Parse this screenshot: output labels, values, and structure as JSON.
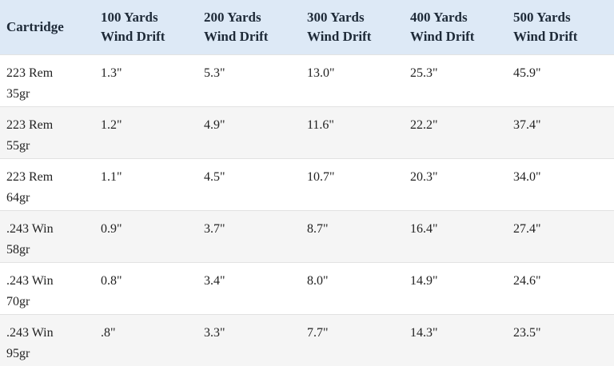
{
  "table": {
    "header": [
      "Cartridge",
      "100 Yards Wind Drift",
      "200 Yards Wind Drift",
      "300 Yards Wind Drift",
      "400 Yards Wind Drift",
      "500 Yards Wind Drift"
    ],
    "rows": [
      [
        "223 Rem 35gr",
        "1.3\"",
        "5.3\"",
        "13.0\"",
        "25.3\"",
        "45.9\""
      ],
      [
        "223 Rem 55gr",
        "1.2\"",
        "4.9\"",
        "11.6\"",
        "22.2\"",
        "37.4\""
      ],
      [
        "223 Rem 64gr",
        "1.1\"",
        "4.5\"",
        "10.7\"",
        "20.3\"",
        "34.0\""
      ],
      [
        ".243 Win 58gr",
        "0.9\"",
        "3.7\"",
        "8.7\"",
        "16.4\"",
        "27.4\""
      ],
      [
        ".243 Win 70gr",
        "0.8\"",
        "3.4\"",
        "8.0\"",
        "14.9\"",
        "24.6\""
      ],
      [
        ".243 Win 95gr",
        ".8\"",
        "3.3\"",
        "7.7\"",
        "14.3\"",
        "23.5\""
      ]
    ]
  }
}
